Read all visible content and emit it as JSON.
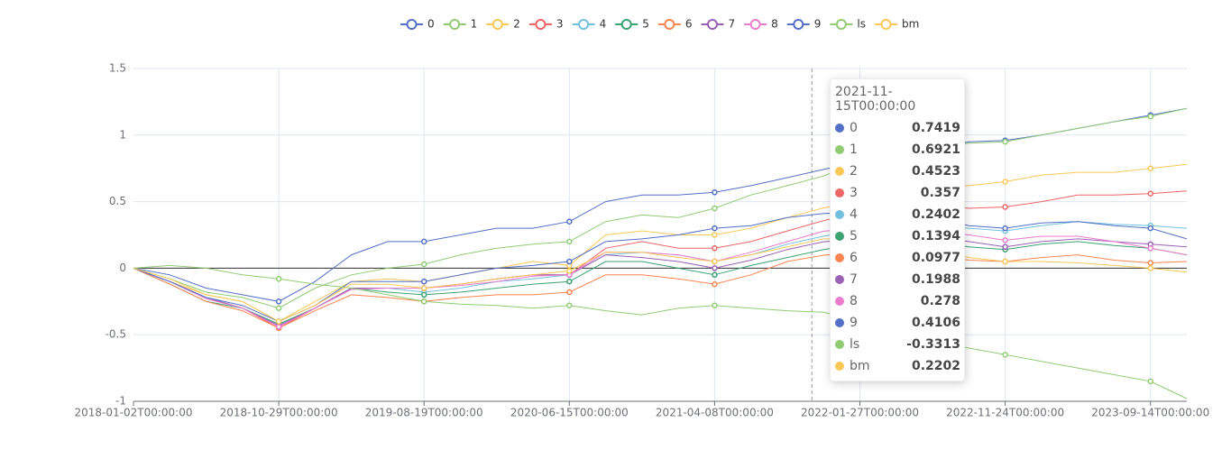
{
  "chart_data": {
    "type": "line",
    "categories": [
      "2018-01-02T00:00:00",
      null,
      null,
      null,
      "2018-10-29T00:00:00",
      null,
      null,
      null,
      "2019-08-19T00:00:00",
      null,
      null,
      null,
      "2020-06-15T00:00:00",
      null,
      null,
      null,
      "2021-04-08T00:00:00",
      null,
      null,
      "2021-11-15T00:00:00",
      "2022-01-27T00:00:00",
      null,
      null,
      null,
      "2022-11-24T00:00:00",
      null,
      null,
      null,
      "2023-09-14T00:00:00",
      null
    ],
    "ylim": [
      -1,
      1.5
    ],
    "yticks": [
      -1,
      -0.5,
      0,
      0.5,
      1,
      1.5
    ],
    "grid": true,
    "series": [
      {
        "name": "0",
        "color": "#5470c6",
        "values": [
          0,
          -0.05,
          -0.15,
          -0.2,
          -0.25,
          -0.1,
          0.1,
          0.2,
          0.2,
          0.25,
          0.3,
          0.3,
          0.35,
          0.5,
          0.55,
          0.55,
          0.57,
          0.62,
          0.68,
          0.7419,
          0.8,
          0.85,
          0.9,
          0.95,
          0.96,
          1.0,
          1.05,
          1.1,
          1.15,
          1.2
        ]
      },
      {
        "name": "1",
        "color": "#91cc75",
        "values": [
          0,
          -0.08,
          -0.18,
          -0.22,
          -0.3,
          -0.15,
          -0.05,
          0.0,
          0.03,
          0.1,
          0.15,
          0.18,
          0.2,
          0.35,
          0.4,
          0.38,
          0.45,
          0.55,
          0.62,
          0.6921,
          0.8,
          0.85,
          0.9,
          0.94,
          0.95,
          1.0,
          1.05,
          1.1,
          1.14,
          1.2
        ]
      },
      {
        "name": "2",
        "color": "#fac858",
        "values": [
          0,
          -0.1,
          -0.2,
          -0.25,
          -0.4,
          -0.25,
          -0.1,
          -0.08,
          -0.1,
          -0.05,
          0.0,
          0.05,
          0.02,
          0.25,
          0.28,
          0.25,
          0.25,
          0.3,
          0.38,
          0.4523,
          0.5,
          0.55,
          0.6,
          0.62,
          0.65,
          0.7,
          0.72,
          0.72,
          0.75,
          0.78
        ]
      },
      {
        "name": "3",
        "color": "#ee6666",
        "values": [
          0,
          -0.1,
          -0.22,
          -0.3,
          -0.45,
          -0.3,
          -0.15,
          -0.15,
          -0.15,
          -0.12,
          -0.08,
          -0.05,
          -0.05,
          0.15,
          0.2,
          0.15,
          0.15,
          0.2,
          0.28,
          0.357,
          0.42,
          0.45,
          0.48,
          0.45,
          0.46,
          0.5,
          0.55,
          0.55,
          0.56,
          0.58
        ]
      },
      {
        "name": "4",
        "color": "#73c0de",
        "values": [
          0,
          -0.1,
          -0.22,
          -0.3,
          -0.42,
          -0.3,
          -0.15,
          -0.15,
          -0.18,
          -0.15,
          -0.1,
          -0.08,
          -0.05,
          0.1,
          0.12,
          0.1,
          0.05,
          0.1,
          0.18,
          0.2402,
          0.28,
          0.3,
          0.32,
          0.3,
          0.28,
          0.32,
          0.35,
          0.33,
          0.32,
          0.3
        ]
      },
      {
        "name": "5",
        "color": "#3ba272",
        "values": [
          0,
          -0.12,
          -0.25,
          -0.3,
          -0.42,
          -0.3,
          -0.15,
          -0.18,
          -0.2,
          -0.18,
          -0.15,
          -0.12,
          -0.1,
          0.05,
          0.05,
          0.0,
          -0.05,
          0.02,
          0.08,
          0.1394,
          0.18,
          0.2,
          0.2,
          0.16,
          0.14,
          0.18,
          0.2,
          0.17,
          0.15,
          0.1
        ]
      },
      {
        "name": "6",
        "color": "#fc8452",
        "values": [
          0,
          -0.12,
          -0.25,
          -0.32,
          -0.45,
          -0.32,
          -0.2,
          -0.22,
          -0.25,
          -0.22,
          -0.2,
          -0.2,
          -0.18,
          -0.05,
          -0.05,
          -0.08,
          -0.12,
          -0.05,
          0.05,
          0.0977,
          0.12,
          0.12,
          0.1,
          0.06,
          0.05,
          0.08,
          0.1,
          0.06,
          0.04,
          0.05
        ]
      },
      {
        "name": "7",
        "color": "#9a60b4",
        "values": [
          0,
          -0.1,
          -0.22,
          -0.3,
          -0.43,
          -0.3,
          -0.15,
          -0.15,
          -0.15,
          -0.12,
          -0.08,
          -0.05,
          -0.05,
          0.1,
          0.08,
          0.05,
          0.0,
          0.06,
          0.14,
          0.1988,
          0.22,
          0.25,
          0.24,
          0.2,
          0.16,
          0.2,
          0.22,
          0.2,
          0.18,
          0.16
        ]
      },
      {
        "name": "8",
        "color": "#ea7ccc",
        "values": [
          0,
          -0.1,
          -0.23,
          -0.3,
          -0.44,
          -0.3,
          -0.16,
          -0.15,
          -0.15,
          -0.13,
          -0.1,
          -0.06,
          -0.05,
          0.12,
          0.12,
          0.1,
          0.05,
          0.12,
          0.2,
          0.278,
          0.3,
          0.3,
          0.28,
          0.25,
          0.21,
          0.24,
          0.24,
          0.2,
          0.15,
          0.1
        ]
      },
      {
        "name": "9",
        "color": "#5470c6",
        "values": [
          0,
          -0.1,
          -0.22,
          -0.28,
          -0.4,
          -0.28,
          -0.1,
          -0.1,
          -0.1,
          -0.05,
          0.0,
          0.02,
          0.05,
          0.2,
          0.22,
          0.25,
          0.3,
          0.32,
          0.38,
          0.4106,
          0.42,
          0.4,
          0.38,
          0.32,
          0.3,
          0.34,
          0.35,
          0.32,
          0.3,
          0.22
        ]
      },
      {
        "name": "ls",
        "color": "#91cc75",
        "values": [
          0,
          0.02,
          0.0,
          -0.05,
          -0.08,
          -0.12,
          -0.15,
          -0.2,
          -0.25,
          -0.27,
          -0.28,
          -0.3,
          -0.28,
          -0.32,
          -0.35,
          -0.3,
          -0.28,
          -0.3,
          -0.32,
          -0.3313,
          -0.4,
          -0.5,
          -0.55,
          -0.6,
          -0.65,
          -0.7,
          -0.75,
          -0.8,
          -0.85,
          -0.98
        ]
      },
      {
        "name": "bm",
        "color": "#fac858",
        "values": [
          0,
          -0.08,
          -0.2,
          -0.25,
          -0.4,
          -0.28,
          -0.12,
          -0.12,
          -0.15,
          -0.12,
          -0.08,
          -0.05,
          -0.02,
          0.12,
          0.12,
          0.08,
          0.05,
          0.1,
          0.16,
          0.2202,
          0.22,
          0.2,
          0.15,
          0.08,
          0.05,
          0.05,
          0.04,
          0.02,
          0.0,
          -0.03
        ]
      }
    ]
  }
}
